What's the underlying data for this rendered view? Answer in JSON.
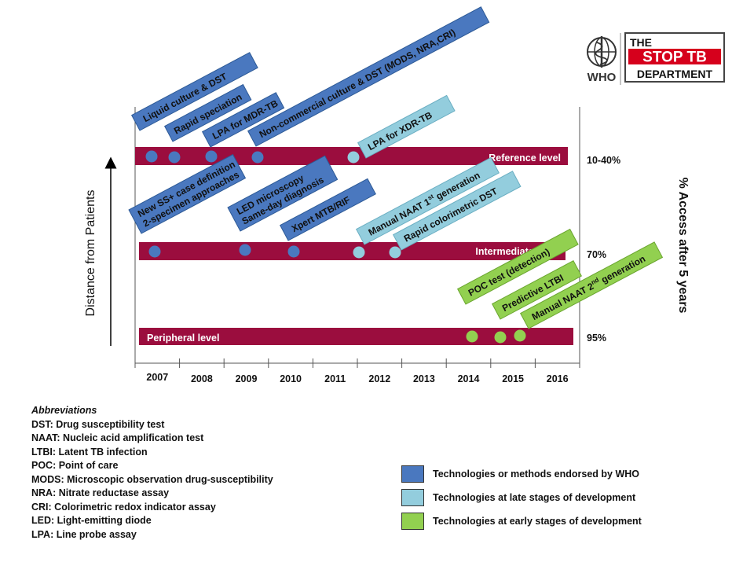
{
  "left_axis_label": "Distance from Patients",
  "right_axis_label": "% Access after 5 years",
  "levels": [
    {
      "id": "reference",
      "label": "Reference level",
      "access": "10-40%"
    },
    {
      "id": "intermediate",
      "label": "Intermediate level",
      "access": "70%"
    },
    {
      "id": "peripheral",
      "label": "Peripheral level",
      "access": "95%"
    }
  ],
  "years": [
    "2007",
    "2008",
    "2009",
    "2010",
    "2011",
    "2012",
    "2013",
    "2014",
    "2015",
    "2016"
  ],
  "technologies": [
    {
      "label": "Liquid culture & DST",
      "status": "endorsed"
    },
    {
      "label": "Rapid speciation",
      "status": "endorsed"
    },
    {
      "label": "LPA for MDR-TB",
      "status": "endorsed"
    },
    {
      "label": "Non-commercial culture & DST (MODS, NRA,CRI)",
      "status": "endorsed"
    },
    {
      "label": "LPA for XDR-TB",
      "status": "late"
    },
    {
      "label": "New SS+ case definition",
      "label2": "2-specimen approaches",
      "status": "endorsed"
    },
    {
      "label": "LED microscopy",
      "label2": "Same-day diagnosis",
      "status": "endorsed"
    },
    {
      "label": "Xpert MTB/RIF",
      "status": "endorsed"
    },
    {
      "label": "Manual NAAT 1",
      "sup": "st",
      "label_tail": " generation",
      "status": "late"
    },
    {
      "label": "Rapid colorimetric DST",
      "status": "late"
    },
    {
      "label": "POC test (detection)",
      "status": "early"
    },
    {
      "label": "Predictive LTBI",
      "status": "early"
    },
    {
      "label": "Manual NAAT 2",
      "sup": "nd",
      "label_tail": " generation",
      "status": "early"
    }
  ],
  "colors": {
    "endorsed": "#4a78bf",
    "late": "#93cddd",
    "early": "#92d050",
    "bar": "#9b0d3e"
  },
  "abbreviations": {
    "title": "Abbreviations",
    "items": [
      "DST:    Drug susceptibility test",
      "NAAT:  Nucleic acid amplification test",
      "LTBI:    Latent TB infection",
      "POC:     Point of care",
      "MODS: Microscopic observation drug-susceptibility",
      "NRA: Nitrate reductase assay",
      "CRI: Colorimetric redox indicator assay",
      "LED: Light-emitting diode",
      "LPA: Line probe assay"
    ]
  },
  "legend": [
    {
      "status": "endorsed",
      "label": "Technologies or methods endorsed  by WHO"
    },
    {
      "status": "late",
      "label": "Technologies at late stages of development"
    },
    {
      "status": "early",
      "label": "Technologies at early stages of development"
    }
  ],
  "logos": {
    "who": "WHO",
    "stoptb_line1": "THE",
    "stoptb_line2": "STOP TB",
    "stoptb_line3": "DEPARTMENT"
  }
}
